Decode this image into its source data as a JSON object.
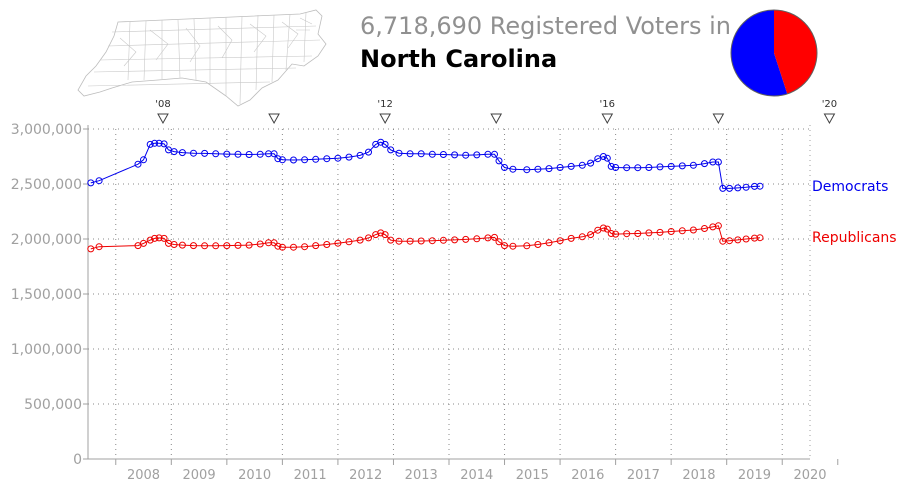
{
  "header": {
    "title_line1": "6,718,690 Registered Voters in",
    "title_line2": "North Carolina"
  },
  "colors": {
    "democrats": "#0000ee",
    "republicans": "#ee0000",
    "axis_text": "#a0a0a0",
    "grid": "#888888"
  },
  "pie": {
    "slices": [
      {
        "name": "Democrats",
        "value": 0.55,
        "color": "#0000ff"
      },
      {
        "name": "Republicans",
        "value": 0.45,
        "color": "#ff0000"
      }
    ]
  },
  "chart_data": {
    "type": "line",
    "title": "6,718,690 Registered Voters in North Carolina",
    "xlabel": "",
    "ylabel": "",
    "ylim": [
      0,
      3000000
    ],
    "xlim": [
      2007.5,
      2020.5
    ],
    "grid": true,
    "yticks": [
      0,
      500000,
      1000000,
      1500000,
      2000000,
      2500000,
      3000000
    ],
    "ytick_labels": [
      "0",
      "500,000",
      "1,000,000",
      "1,500,000",
      "2,000,000",
      "2,500,000",
      "3,000,000"
    ],
    "x_categories": [
      "2008",
      "2009",
      "2010",
      "2011",
      "2012",
      "2013",
      "2014",
      "2015",
      "2016",
      "2017",
      "2018",
      "2019",
      "2020"
    ],
    "election_markers": [
      {
        "x": 2008.85,
        "label": "'08"
      },
      {
        "x": 2010.85,
        "label": ""
      },
      {
        "x": 2012.85,
        "label": "'12"
      },
      {
        "x": 2014.85,
        "label": ""
      },
      {
        "x": 2016.85,
        "label": "'16"
      },
      {
        "x": 2018.85,
        "label": ""
      },
      {
        "x": 2020.85,
        "label": "'20"
      }
    ],
    "series": [
      {
        "name": "Democrats",
        "points": [
          [
            2007.55,
            2510000
          ],
          [
            2007.7,
            2530000
          ],
          [
            2008.4,
            2680000
          ],
          [
            2008.5,
            2720000
          ],
          [
            2008.62,
            2860000
          ],
          [
            2008.7,
            2870000
          ],
          [
            2008.78,
            2870000
          ],
          [
            2008.87,
            2865000
          ],
          [
            2008.95,
            2810000
          ],
          [
            2009.05,
            2795000
          ],
          [
            2009.2,
            2785000
          ],
          [
            2009.4,
            2780000
          ],
          [
            2009.6,
            2778000
          ],
          [
            2009.8,
            2775000
          ],
          [
            2010.0,
            2772000
          ],
          [
            2010.2,
            2770000
          ],
          [
            2010.4,
            2768000
          ],
          [
            2010.6,
            2770000
          ],
          [
            2010.75,
            2775000
          ],
          [
            2010.85,
            2775000
          ],
          [
            2010.92,
            2730000
          ],
          [
            2011.0,
            2720000
          ],
          [
            2011.2,
            2718000
          ],
          [
            2011.4,
            2720000
          ],
          [
            2011.6,
            2725000
          ],
          [
            2011.8,
            2730000
          ],
          [
            2012.0,
            2735000
          ],
          [
            2012.2,
            2745000
          ],
          [
            2012.4,
            2760000
          ],
          [
            2012.55,
            2790000
          ],
          [
            2012.68,
            2860000
          ],
          [
            2012.77,
            2880000
          ],
          [
            2012.85,
            2860000
          ],
          [
            2012.95,
            2810000
          ],
          [
            2013.1,
            2780000
          ],
          [
            2013.3,
            2775000
          ],
          [
            2013.5,
            2775000
          ],
          [
            2013.7,
            2770000
          ],
          [
            2013.9,
            2768000
          ],
          [
            2014.1,
            2765000
          ],
          [
            2014.3,
            2762000
          ],
          [
            2014.5,
            2765000
          ],
          [
            2014.7,
            2770000
          ],
          [
            2014.82,
            2770000
          ],
          [
            2014.9,
            2710000
          ],
          [
            2015.0,
            2650000
          ],
          [
            2015.15,
            2635000
          ],
          [
            2015.4,
            2630000
          ],
          [
            2015.6,
            2635000
          ],
          [
            2015.8,
            2640000
          ],
          [
            2016.0,
            2650000
          ],
          [
            2016.2,
            2660000
          ],
          [
            2016.4,
            2670000
          ],
          [
            2016.55,
            2690000
          ],
          [
            2016.68,
            2730000
          ],
          [
            2016.78,
            2750000
          ],
          [
            2016.85,
            2735000
          ],
          [
            2016.92,
            2660000
          ],
          [
            2017.0,
            2650000
          ],
          [
            2017.2,
            2648000
          ],
          [
            2017.4,
            2648000
          ],
          [
            2017.6,
            2650000
          ],
          [
            2017.8,
            2655000
          ],
          [
            2018.0,
            2660000
          ],
          [
            2018.2,
            2665000
          ],
          [
            2018.4,
            2670000
          ],
          [
            2018.6,
            2685000
          ],
          [
            2018.75,
            2700000
          ],
          [
            2018.85,
            2700000
          ],
          [
            2018.93,
            2460000
          ],
          [
            2019.05,
            2460000
          ],
          [
            2019.2,
            2465000
          ],
          [
            2019.35,
            2470000
          ],
          [
            2019.5,
            2478000
          ],
          [
            2019.6,
            2480000
          ]
        ]
      },
      {
        "name": "Republicans",
        "points": [
          [
            2007.55,
            1910000
          ],
          [
            2007.7,
            1930000
          ],
          [
            2008.4,
            1940000
          ],
          [
            2008.5,
            1960000
          ],
          [
            2008.62,
            1990000
          ],
          [
            2008.7,
            2005000
          ],
          [
            2008.78,
            2010000
          ],
          [
            2008.87,
            2005000
          ],
          [
            2008.95,
            1960000
          ],
          [
            2009.05,
            1950000
          ],
          [
            2009.2,
            1945000
          ],
          [
            2009.4,
            1940000
          ],
          [
            2009.6,
            1938000
          ],
          [
            2009.8,
            1938000
          ],
          [
            2010.0,
            1940000
          ],
          [
            2010.2,
            1942000
          ],
          [
            2010.4,
            1945000
          ],
          [
            2010.6,
            1955000
          ],
          [
            2010.75,
            1965000
          ],
          [
            2010.85,
            1965000
          ],
          [
            2010.92,
            1935000
          ],
          [
            2011.0,
            1925000
          ],
          [
            2011.2,
            1925000
          ],
          [
            2011.4,
            1930000
          ],
          [
            2011.6,
            1940000
          ],
          [
            2011.8,
            1950000
          ],
          [
            2012.0,
            1962000
          ],
          [
            2012.2,
            1975000
          ],
          [
            2012.4,
            1990000
          ],
          [
            2012.55,
            2010000
          ],
          [
            2012.68,
            2040000
          ],
          [
            2012.77,
            2055000
          ],
          [
            2012.85,
            2040000
          ],
          [
            2012.95,
            1990000
          ],
          [
            2013.1,
            1980000
          ],
          [
            2013.3,
            1980000
          ],
          [
            2013.5,
            1982000
          ],
          [
            2013.7,
            1985000
          ],
          [
            2013.9,
            1988000
          ],
          [
            2014.1,
            1992000
          ],
          [
            2014.3,
            1996000
          ],
          [
            2014.5,
            2002000
          ],
          [
            2014.7,
            2010000
          ],
          [
            2014.82,
            2015000
          ],
          [
            2014.9,
            1975000
          ],
          [
            2015.0,
            1940000
          ],
          [
            2015.15,
            1935000
          ],
          [
            2015.4,
            1938000
          ],
          [
            2015.6,
            1950000
          ],
          [
            2015.8,
            1965000
          ],
          [
            2016.0,
            1985000
          ],
          [
            2016.2,
            2005000
          ],
          [
            2016.4,
            2020000
          ],
          [
            2016.55,
            2040000
          ],
          [
            2016.68,
            2080000
          ],
          [
            2016.78,
            2100000
          ],
          [
            2016.85,
            2090000
          ],
          [
            2016.92,
            2050000
          ],
          [
            2017.0,
            2045000
          ],
          [
            2017.2,
            2048000
          ],
          [
            2017.4,
            2050000
          ],
          [
            2017.6,
            2055000
          ],
          [
            2017.8,
            2060000
          ],
          [
            2018.0,
            2068000
          ],
          [
            2018.2,
            2075000
          ],
          [
            2018.4,
            2082000
          ],
          [
            2018.6,
            2095000
          ],
          [
            2018.75,
            2110000
          ],
          [
            2018.85,
            2120000
          ],
          [
            2018.93,
            1980000
          ],
          [
            2019.05,
            1985000
          ],
          [
            2019.2,
            1992000
          ],
          [
            2019.35,
            2000000
          ],
          [
            2019.5,
            2008000
          ],
          [
            2019.6,
            2012000
          ]
        ]
      }
    ]
  }
}
